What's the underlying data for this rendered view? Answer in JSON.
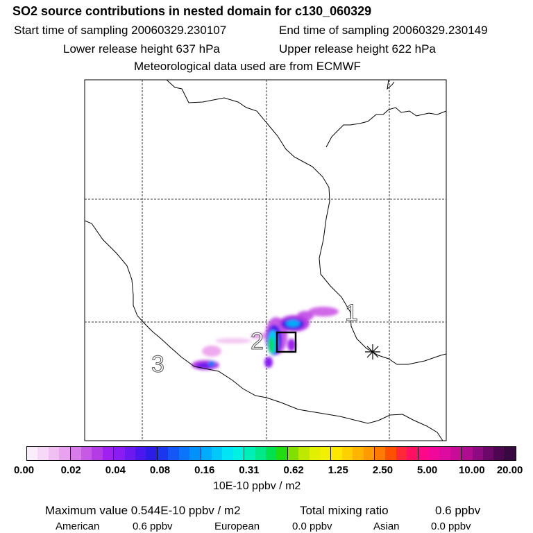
{
  "header": {
    "title": "SO2 source contributions in nested domain for c130_060329",
    "start_label": "Start time of sampling 20060329.230107",
    "end_label": "End time of sampling 20060329.230149",
    "lower_label": "Lower release height  637 hPa",
    "upper_label": "Upper release height  622 hPa",
    "met_label": "Meteorological data used are from ECMWF"
  },
  "map": {
    "markers": [
      {
        "label": "1"
      },
      {
        "label": "2"
      },
      {
        "label": "3"
      }
    ],
    "star_symbol": "asterisk"
  },
  "colorbar": {
    "ticks": [
      "0.00",
      "0.02",
      "0.04",
      "0.08",
      "0.16",
      "0.31",
      "0.62",
      "1.25",
      "2.50",
      "5.00",
      "10.00",
      "20.00"
    ],
    "unit": "10E-10 ppbv / m2",
    "colors": [
      "#fbeefb",
      "#f6d8f7",
      "#f0c0f3",
      "#e9a2ef",
      "#d77ce9",
      "#c65ae6",
      "#b43ce4",
      "#a020f0",
      "#8a1bf2",
      "#6c19f0",
      "#4a17ee",
      "#2c1ce8",
      "#1c36f0",
      "#1456f6",
      "#0a74fa",
      "#0092fb",
      "#00acfb",
      "#00c8fb",
      "#00e4f6",
      "#00f0e2",
      "#00eeb8",
      "#00e888",
      "#00e050",
      "#20dc10",
      "#80e000",
      "#bde800",
      "#e2f000",
      "#f2f000",
      "#ffe800",
      "#ffd000",
      "#ffb400",
      "#ff9a00",
      "#ff7a00",
      "#ff5000",
      "#ff2838",
      "#ff1060",
      "#ff0888",
      "#f0089a",
      "#dc0ca0",
      "#c80c98",
      "#b00c90",
      "#8e0a80",
      "#6c0868",
      "#4e0650",
      "#380840"
    ]
  },
  "summary": {
    "max_label": "Maximum value  0.544E-10 ppbv / m2",
    "total_label": "Total mixing ratio",
    "total_value": "0.6 ppbv",
    "american_label": "American",
    "american_value": "0.6 ppbv",
    "european_label": "European",
    "european_value": "0.0 ppbv",
    "asian_label": "Asian",
    "asian_value": "0.0 ppbv"
  }
}
